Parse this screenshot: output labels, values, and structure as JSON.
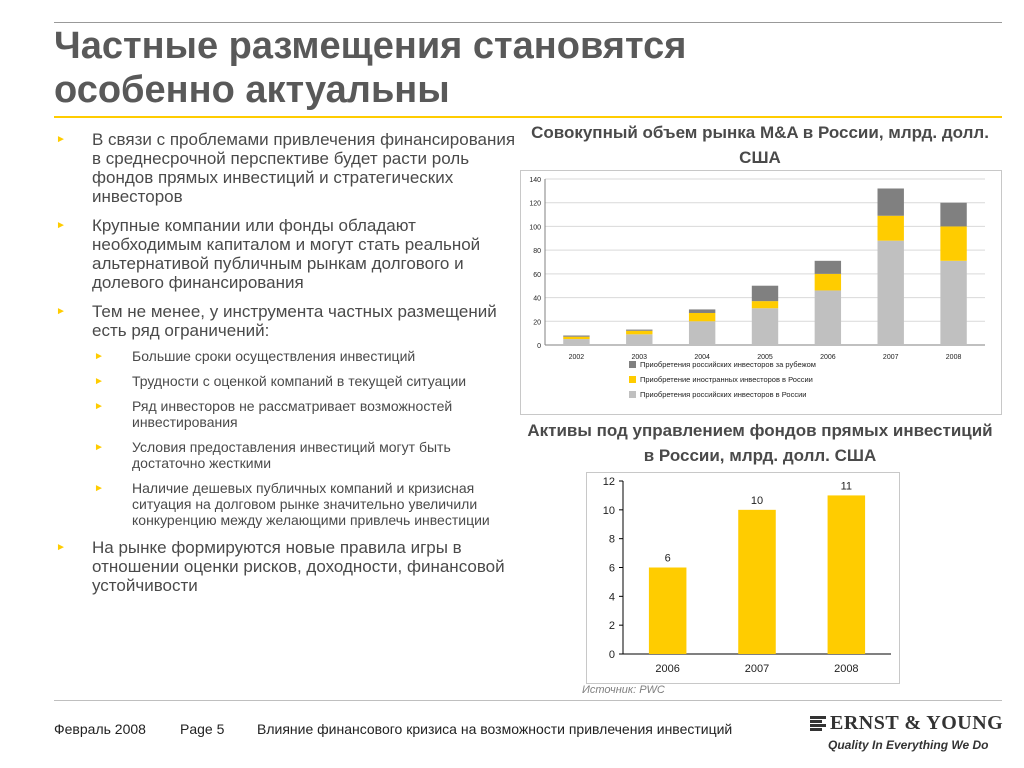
{
  "header": {
    "title_line1": "Частные размещения становятся",
    "title_line2": "особенно актуальны"
  },
  "bullets": [
    {
      "text": "В связи с проблемами привлечения финансирования в среднесрочной перспективе будет расти роль фондов прямых инвестиций и стратегических инвесторов"
    },
    {
      "text": "Крупные компании или фонды обладают необходимым капиталом и могут стать реальной альтернативой публичным рынкам долгового и долевого финансирования"
    },
    {
      "text": "Тем не менее, у инструмента частных размещений есть ряд ограничений:",
      "sub": [
        "Большие сроки осуществления инвестиций",
        "Трудности с оценкой компаний в текущей ситуации",
        "Ряд инвесторов не рассматривает возможностей инвестирования",
        "Условия предоставления инвестиций могут быть достаточно жесткими",
        "Наличие дешевых публичных компаний и кризисная ситуация на долговом рынке значительно увеличили конкуренцию между желающими привлечь инвестиции"
      ]
    },
    {
      "text": "На рынке формируются новые правила игры в отношении оценки рисков, доходности, финансовой устойчивости"
    }
  ],
  "bullet_glyph": "►",
  "colors": {
    "accent": "#ffcc00",
    "series_gray": "#808080",
    "series_yellow": "#ffcc00",
    "series_lightgray": "#c0c0c0"
  },
  "chart_data": [
    {
      "type": "bar",
      "stacked": true,
      "title": "Совокупный объем рынка M&A в России, млрд. долл. США",
      "categories": [
        "2002",
        "2003",
        "2004",
        "2005",
        "2006",
        "2007",
        "2008"
      ],
      "series": [
        {
          "name": "Приобретения российских инвесторов в России",
          "color": "#c0c0c0",
          "values": [
            5,
            9,
            20,
            31,
            46,
            88,
            71
          ]
        },
        {
          "name": "Приобретение иностранных инвесторов в России",
          "color": "#ffcc00",
          "values": [
            2,
            3,
            7,
            6,
            14,
            21,
            29
          ]
        },
        {
          "name": "Приобретения российских инвесторов за рубежом",
          "color": "#808080",
          "values": [
            1,
            1,
            3,
            13,
            11,
            23,
            20
          ]
        }
      ],
      "ylim": [
        0,
        140
      ],
      "yticks": [
        "0",
        "20",
        "40",
        "60",
        "80",
        "100",
        "120",
        "140"
      ],
      "legend_position": "bottom",
      "grid": true
    },
    {
      "type": "bar",
      "title": "Активы под управлением фондов прямых инвестиций в России, млрд. долл. США",
      "categories": [
        "2006",
        "2007",
        "2008"
      ],
      "values": [
        6,
        10,
        11
      ],
      "data_labels": [
        "6",
        "10",
        "11"
      ],
      "color": "#ffcc00",
      "ylim": [
        0,
        12
      ],
      "yticks": [
        "0",
        "2",
        "4",
        "6",
        "8",
        "10",
        "12"
      ],
      "grid": false
    }
  ],
  "source": "Источник: PWC",
  "footer": {
    "date": "Февраль 2008",
    "page": "Page 5",
    "description": "Влияние финансового кризиса на возможности привлечения инвестиций"
  },
  "logo": {
    "name": "ERNST & YOUNG",
    "tagline": "Quality In Everything We Do"
  }
}
